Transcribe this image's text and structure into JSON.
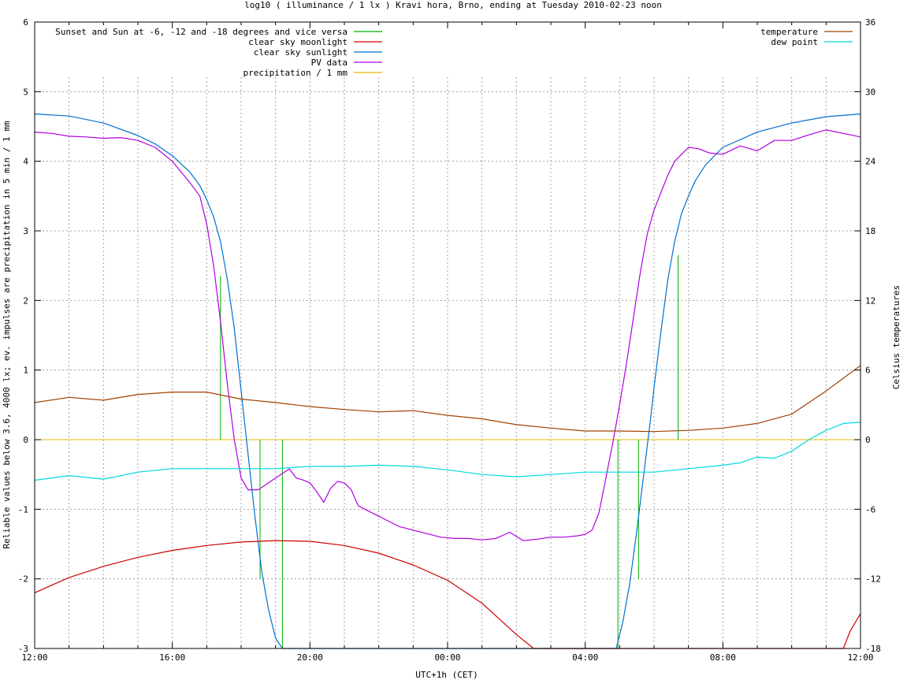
{
  "chart_data": {
    "type": "line",
    "title": "log10 ( illuminance / 1 lx ) Kravi hora, Brno, ending at Tuesday 2010-02-23 noon",
    "xlabel": "UTC+1h (CET)",
    "ylabel": "Reliable values below 3.6, 4000 lx; ev. impulses are precipitation in 5 min / 1 mm",
    "y2label": "Celsius temperatures",
    "x_ticks": [
      "12:00",
      "16:00",
      "20:00",
      "00:00",
      "04:00",
      "08:00",
      "12:00"
    ],
    "x_range_hours": [
      0,
      24
    ],
    "ylim": [
      -3,
      6
    ],
    "y_ticks": [
      "-3",
      "-2",
      "-1",
      "0",
      "1",
      "2",
      "3",
      "4",
      "5",
      "6"
    ],
    "y2lim": [
      -18,
      36
    ],
    "y2_ticks": [
      "-18",
      "-12",
      "-6",
      "0",
      "6",
      "12",
      "18",
      "24",
      "30",
      "36"
    ],
    "grid": true,
    "legend_left": [
      "Sunset and Sun at -6, -12 and -18 degrees and vice versa",
      "clear sky moonlight",
      "clear sky sunlight",
      "PV data",
      "precipitation / 1 mm"
    ],
    "legend_right": [
      "temperature",
      "dew point"
    ],
    "colors": {
      "sunmarks": "#00b000",
      "moonlight": "#d00000",
      "sunlight": "#0070d0",
      "pv": "#b000e0",
      "precipitation": "#e8b800",
      "temperature": "#a04000",
      "dewpoint": "#00d8e0",
      "grid": "#a0a0a0"
    },
    "series": [
      {
        "name": "clear sky sunlight",
        "x": [
          0,
          1,
          2,
          3,
          3.5,
          4,
          4.5,
          4.8,
          5.0,
          5.2,
          5.4,
          5.6,
          5.8,
          6.0,
          6.2,
          6.4,
          6.6,
          6.8,
          7.0,
          7.2,
          7.3,
          16.8,
          16.9,
          17.1,
          17.3,
          17.5,
          17.7,
          17.9,
          18.0,
          18.2,
          18.4,
          18.6,
          18.8,
          19.0,
          19.2,
          19.5,
          20,
          21,
          22,
          23,
          24
        ],
        "y": [
          4.68,
          4.65,
          4.55,
          4.37,
          4.25,
          4.08,
          3.85,
          3.65,
          3.45,
          3.2,
          2.85,
          2.3,
          1.6,
          0.7,
          -0.2,
          -1.1,
          -1.9,
          -2.45,
          -2.85,
          -3.0,
          -3.1,
          -3.1,
          -3.0,
          -2.6,
          -2.05,
          -1.3,
          -0.5,
          0.3,
          0.75,
          1.55,
          2.3,
          2.85,
          3.25,
          3.5,
          3.72,
          3.95,
          4.2,
          4.42,
          4.55,
          4.64,
          4.68
        ]
      },
      {
        "name": "clear sky moonlight",
        "x": [
          0,
          1,
          2,
          3,
          4,
          5,
          6,
          7,
          8,
          9,
          10,
          11,
          12,
          13,
          14,
          14.5,
          15,
          15.2,
          15.4,
          23.4,
          23.5,
          23.7,
          24
        ],
        "y": [
          -2.2,
          -1.98,
          -1.82,
          -1.69,
          -1.59,
          -1.52,
          -1.47,
          -1.45,
          -1.46,
          -1.52,
          -1.63,
          -1.8,
          -2.02,
          -2.35,
          -2.8,
          -3.05,
          -3.3,
          -3.3,
          -3.3,
          -3.3,
          -3.05,
          -2.75,
          -2.5
        ]
      },
      {
        "name": "PV data",
        "x": [
          0,
          0.5,
          1,
          1.5,
          2,
          2.5,
          3,
          3.5,
          4,
          4.5,
          4.8,
          5.0,
          5.2,
          5.4,
          5.6,
          5.8,
          6.0,
          6.2,
          6.5,
          7,
          7.4,
          7.6,
          7.8,
          8.0,
          8.2,
          8.4,
          8.6,
          8.8,
          9.0,
          9.2,
          9.4,
          9.6,
          9.8,
          10.0,
          10.2,
          10.4,
          10.6,
          11.0,
          11.4,
          11.8,
          12.2,
          12.6,
          13.0,
          13.4,
          13.8,
          14.2,
          14.6,
          15.0,
          15.4,
          15.8,
          16.0,
          16.2,
          16.4,
          16.6,
          16.8,
          17.0,
          17.2,
          17.4,
          17.6,
          17.8,
          18.0,
          18.2,
          18.4,
          18.6,
          18.8,
          19.0,
          19.3,
          19.6,
          20,
          20.5,
          21,
          21.5,
          22,
          22.5,
          23,
          23.5,
          24
        ],
        "y": [
          4.42,
          4.4,
          4.36,
          4.35,
          4.33,
          4.34,
          4.3,
          4.2,
          4.0,
          3.7,
          3.5,
          3.1,
          2.5,
          1.7,
          0.8,
          0.0,
          -0.55,
          -0.72,
          -0.72,
          -0.55,
          -0.42,
          -0.55,
          -0.58,
          -0.62,
          -0.75,
          -0.9,
          -0.7,
          -0.6,
          -0.62,
          -0.72,
          -0.95,
          -1.0,
          -1.05,
          -1.1,
          -1.15,
          -1.2,
          -1.25,
          -1.3,
          -1.35,
          -1.4,
          -1.42,
          -1.42,
          -1.44,
          -1.42,
          -1.33,
          -1.45,
          -1.43,
          -1.4,
          -1.4,
          -1.38,
          -1.36,
          -1.3,
          -1.05,
          -0.55,
          -0.05,
          0.5,
          1.1,
          1.75,
          2.4,
          2.95,
          3.3,
          3.55,
          3.8,
          4.0,
          4.1,
          4.2,
          4.18,
          4.12,
          4.1,
          4.22,
          4.15,
          4.3,
          4.3,
          4.38,
          4.45,
          4.4,
          4.35
        ]
      },
      {
        "name": "temperature",
        "x": [
          0,
          1,
          2,
          3,
          4,
          5,
          6,
          7,
          8,
          9,
          10,
          11,
          12,
          13,
          14,
          15,
          16,
          17,
          18,
          19,
          20,
          21,
          22,
          22.5,
          23,
          23.5,
          24
        ],
        "y": [
          3.2,
          3.65,
          3.4,
          3.9,
          4.1,
          4.1,
          3.5,
          3.2,
          2.85,
          2.6,
          2.4,
          2.5,
          2.1,
          1.8,
          1.3,
          1.0,
          0.75,
          0.75,
          0.7,
          0.8,
          1.0,
          1.4,
          2.2,
          3.2,
          4.2,
          5.3,
          6.4
        ]
      },
      {
        "name": "dew point",
        "x": [
          0,
          1,
          2,
          3,
          4,
          5,
          6,
          7,
          8,
          9,
          10,
          11,
          12,
          13,
          14,
          15,
          16,
          17,
          18,
          19,
          20,
          20.5,
          21,
          21.5,
          22,
          22.5,
          23,
          23.5,
          24
        ],
        "y": [
          -3.5,
          -3.1,
          -3.4,
          -2.8,
          -2.5,
          -2.5,
          -2.5,
          -2.5,
          -2.3,
          -2.3,
          -2.2,
          -2.3,
          -2.6,
          -3.0,
          -3.2,
          -3.0,
          -2.8,
          -2.8,
          -2.8,
          -2.5,
          -2.2,
          -2.0,
          -1.5,
          -1.6,
          -1.0,
          0.0,
          0.8,
          1.4,
          1.5
        ]
      }
    ],
    "sun_event_marks": [
      {
        "x": 5.4,
        "y": 2.35
      },
      {
        "x": 5.95,
        "y": 0.0
      },
      {
        "x": 6.55,
        "y": -2.0
      },
      {
        "x": 7.2,
        "y": -3.0
      },
      {
        "x": 16.95,
        "y": -3.0
      },
      {
        "x": 17.55,
        "y": -2.0
      },
      {
        "x": 18.1,
        "y": 0.0
      },
      {
        "x": 18.7,
        "y": 2.65
      }
    ],
    "precipitation": {
      "y": 0
    }
  }
}
